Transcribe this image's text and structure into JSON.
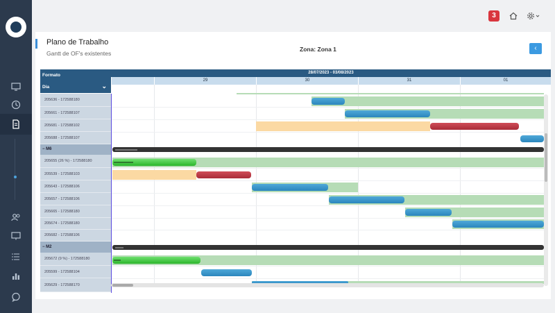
{
  "topbar": {
    "notifications": "3"
  },
  "panel": {
    "title": "Plano de Trabalho",
    "subtitle": "Gantt de OF's existentes",
    "zone": "Zona: Zona 1",
    "back_label": "‹"
  },
  "gantt": {
    "formato_label": "Formato",
    "dia_label": "Dia",
    "range_label": "28/07/2023 - 03/08/2023",
    "days": [
      "29",
      "30",
      "31",
      "01"
    ],
    "rows": [
      {
        "label": "205636 - 172588180"
      },
      {
        "label": "205661 - 172588107"
      },
      {
        "label": "205681 - 172588102"
      },
      {
        "label": "205688 - 172588107"
      },
      {
        "label": "− M6",
        "group": true
      },
      {
        "label": "205655 (26 %) - 172588180"
      },
      {
        "label": "205539 - 172588103"
      },
      {
        "label": "205643 - 172588106"
      },
      {
        "label": "205657 - 172588106"
      },
      {
        "label": "205665 - 172588180"
      },
      {
        "label": "205674 - 172588180"
      },
      {
        "label": "205682 - 172588106"
      },
      {
        "label": "− M2",
        "group": true
      },
      {
        "label": "205672 (9 %) - 172588180"
      },
      {
        "label": "205599 - 172588104"
      },
      {
        "label": "205629 - 172588170"
      }
    ]
  },
  "colors": {
    "sidebar": "#2c3a4d",
    "header": "#2a5a82",
    "bar_blue": "#3b9ad0",
    "bar_red": "#c23a46",
    "bar_green_bg": "#b6dcb6",
    "bar_orange_bg": "#fbd9a3",
    "bar_lime": "#4fcf4f"
  }
}
